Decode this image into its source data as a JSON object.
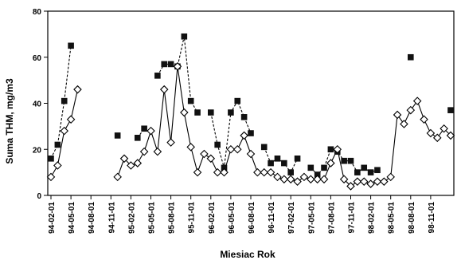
{
  "chart_data": {
    "type": "line",
    "title": "",
    "xlabel": "Miesiac Rok",
    "ylabel": "Suma THM, mg/m3",
    "ylim": [
      0,
      80
    ],
    "yticks": [
      0,
      20,
      40,
      60,
      80
    ],
    "xticks": [
      "94-02-01",
      "94-05-01",
      "94-08-01",
      "94-11-01",
      "95-02-01",
      "95-05-01",
      "95-08-01",
      "95-11-01",
      "96-02-01",
      "96-05-01",
      "96-08-01",
      "96-11-01",
      "97-02-01",
      "97-05-01",
      "97-08-01",
      "97-11-01",
      "98-02-01",
      "98-05-01",
      "98-08-01",
      "98-11-01"
    ],
    "grid": false,
    "legend": "none",
    "colors": {
      "series_stroke": "#000000",
      "diamond_fill": "#ffffff",
      "square_fill": "#111111"
    },
    "series": [
      {
        "marker": "square",
        "line": "dashed",
        "segments": [
          [
            [
              0,
              16
            ],
            [
              1,
              22
            ],
            [
              2,
              41
            ],
            [
              3,
              65
            ]
          ],
          [
            [
              10,
              26
            ]
          ],
          [
            [
              13,
              25
            ],
            [
              14,
              29
            ]
          ],
          [
            [
              16,
              52
            ],
            [
              17,
              57
            ],
            [
              18,
              57
            ],
            [
              19,
              56
            ],
            [
              20,
              69
            ],
            [
              21,
              41
            ],
            [
              22,
              36
            ]
          ],
          [
            [
              24,
              36
            ],
            [
              25,
              22
            ],
            [
              26,
              12
            ],
            [
              27,
              36
            ],
            [
              28,
              41
            ],
            [
              29,
              34
            ],
            [
              30,
              27
            ]
          ],
          [
            [
              32,
              21
            ],
            [
              33,
              14
            ],
            [
              34,
              16
            ],
            [
              35,
              14
            ],
            [
              36,
              10
            ],
            [
              37,
              16
            ]
          ],
          [
            [
              39,
              12
            ],
            [
              40,
              9
            ],
            [
              41,
              12
            ],
            [
              42,
              20
            ],
            [
              43,
              19
            ],
            [
              44,
              15
            ],
            [
              45,
              15
            ],
            [
              46,
              10
            ],
            [
              47,
              12
            ],
            [
              48,
              10
            ],
            [
              49,
              11
            ]
          ],
          [
            [
              54,
              60
            ]
          ],
          [
            [
              60,
              37
            ]
          ]
        ]
      },
      {
        "marker": "diamond",
        "line": "solid",
        "segments": [
          [
            [
              0,
              8
            ],
            [
              1,
              13
            ],
            [
              2,
              28
            ],
            [
              3,
              33
            ],
            [
              4,
              46
            ]
          ],
          [
            [
              10,
              8
            ],
            [
              11,
              16
            ],
            [
              12,
              13
            ],
            [
              13,
              14
            ],
            [
              14,
              19
            ],
            [
              15,
              28
            ],
            [
              16,
              19
            ],
            [
              17,
              46
            ],
            [
              18,
              23
            ],
            [
              19,
              56
            ],
            [
              20,
              36
            ],
            [
              21,
              21
            ],
            [
              22,
              10
            ],
            [
              23,
              18
            ],
            [
              24,
              16
            ],
            [
              25,
              10
            ],
            [
              26,
              10
            ],
            [
              27,
              20
            ],
            [
              28,
              20
            ],
            [
              29,
              26
            ],
            [
              30,
              18
            ],
            [
              31,
              10
            ],
            [
              32,
              10
            ],
            [
              33,
              10
            ],
            [
              34,
              8
            ],
            [
              35,
              7
            ],
            [
              36,
              7
            ],
            [
              37,
              6
            ],
            [
              38,
              8
            ],
            [
              39,
              7
            ],
            [
              40,
              7
            ],
            [
              41,
              7
            ],
            [
              42,
              14
            ],
            [
              43,
              20
            ],
            [
              44,
              7
            ],
            [
              45,
              4
            ],
            [
              46,
              6
            ],
            [
              47,
              6
            ],
            [
              48,
              5
            ],
            [
              49,
              6
            ],
            [
              50,
              6
            ],
            [
              51,
              8
            ],
            [
              52,
              35
            ],
            [
              53,
              31
            ],
            [
              54,
              37
            ],
            [
              55,
              41
            ],
            [
              56,
              33
            ],
            [
              57,
              27
            ],
            [
              58,
              25
            ],
            [
              59,
              29
            ],
            [
              60,
              26
            ]
          ]
        ]
      }
    ]
  }
}
